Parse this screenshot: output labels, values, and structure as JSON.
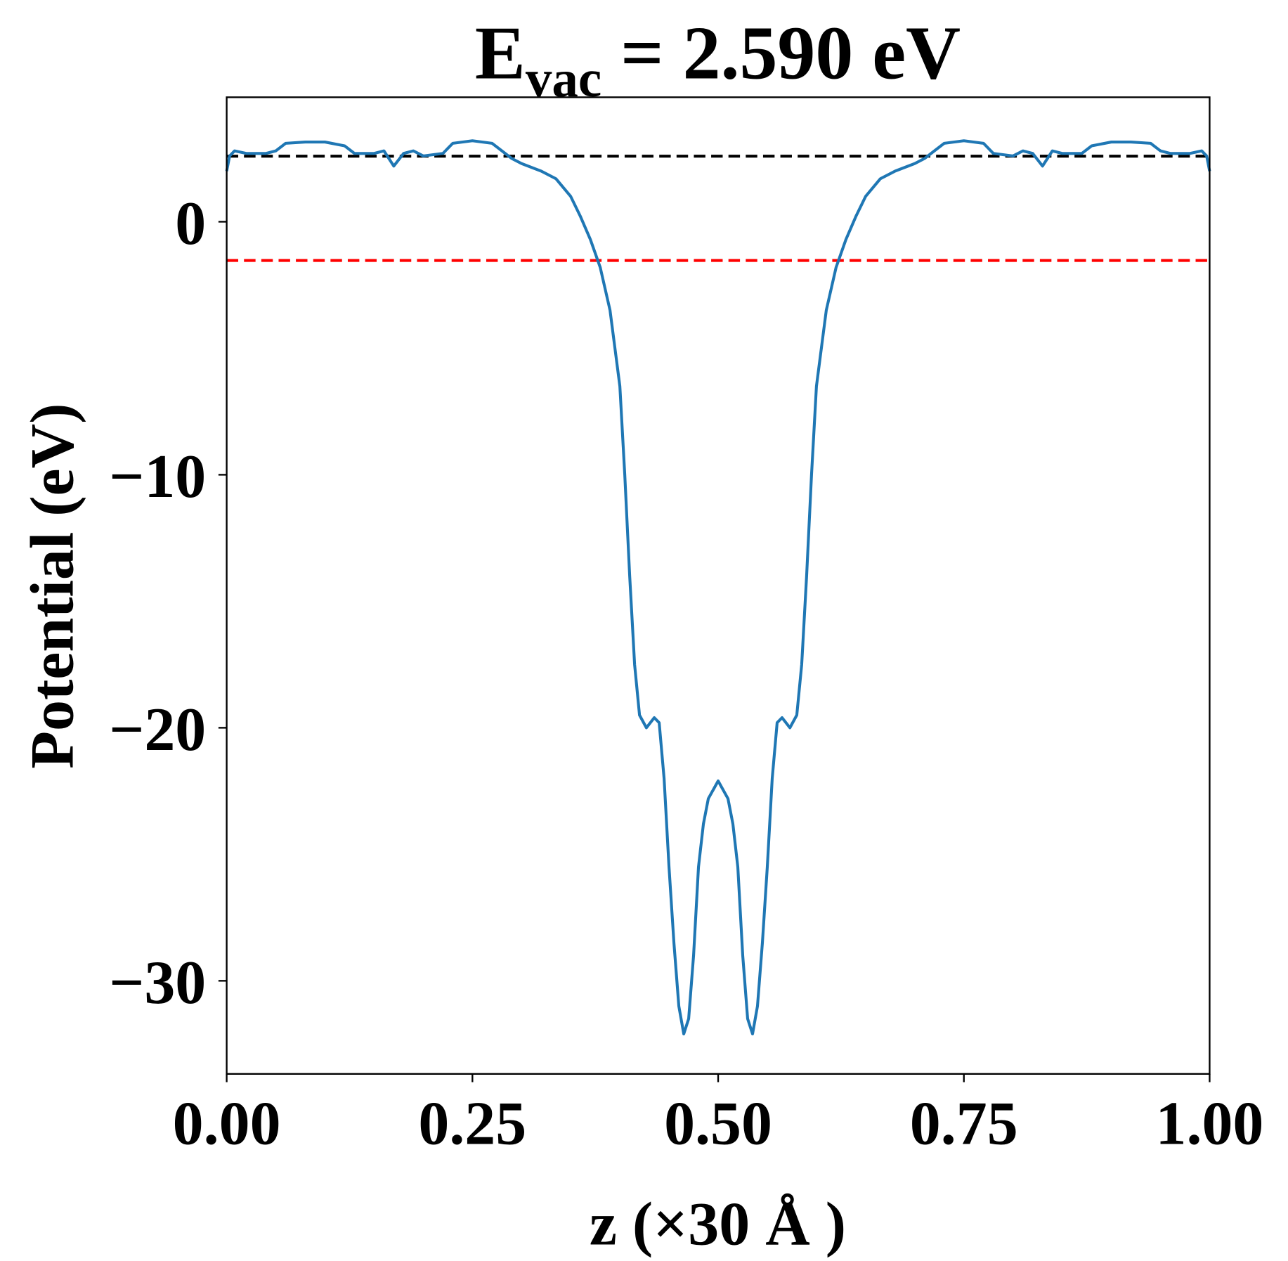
{
  "chart_data": {
    "type": "line",
    "title": {
      "main": "E",
      "subscript": "vac",
      "rest": " = 2.590 eV"
    },
    "xlabel": "z (×30 Å )",
    "ylabel": "Potential (eV)",
    "color": "#1f77b4",
    "x": [
      0,
      0.003,
      0.008,
      0.02,
      0.04,
      0.05,
      0.06,
      0.08,
      0.1,
      0.12,
      0.13,
      0.15,
      0.16,
      0.165,
      0.17,
      0.18,
      0.19,
      0.2,
      0.22,
      0.23,
      0.25,
      0.27,
      0.28,
      0.29,
      0.3,
      0.32,
      0.335,
      0.35,
      0.36,
      0.37,
      0.38,
      0.39,
      0.4,
      0.405,
      0.41,
      0.415,
      0.42,
      0.427,
      0.435,
      0.44,
      0.445,
      0.45,
      0.455,
      0.46,
      0.465,
      0.47,
      0.475,
      0.48,
      0.485,
      0.49,
      0.5,
      0.51,
      0.515,
      0.52,
      0.525,
      0.53,
      0.535,
      0.54,
      0.545,
      0.55,
      0.555,
      0.56,
      0.565,
      0.573,
      0.58,
      0.585,
      0.59,
      0.595,
      0.6,
      0.61,
      0.62,
      0.63,
      0.64,
      0.65,
      0.665,
      0.68,
      0.7,
      0.71,
      0.72,
      0.73,
      0.75,
      0.77,
      0.78,
      0.8,
      0.81,
      0.82,
      0.83,
      0.835,
      0.84,
      0.85,
      0.87,
      0.88,
      0.9,
      0.92,
      0.94,
      0.95,
      0.96,
      0.98,
      0.992,
      0.997,
      1.0
    ],
    "values": [
      2.0,
      2.6,
      2.8,
      2.7,
      2.7,
      2.8,
      3.1,
      3.15,
      3.15,
      3.0,
      2.7,
      2.7,
      2.8,
      2.5,
      2.2,
      2.7,
      2.8,
      2.6,
      2.7,
      3.1,
      3.2,
      3.1,
      2.8,
      2.5,
      2.3,
      2.0,
      1.7,
      1.0,
      0.2,
      -0.7,
      -1.8,
      -3.5,
      -6.5,
      -10,
      -14,
      -17.5,
      -19.5,
      -20.0,
      -19.6,
      -19.8,
      -22,
      -25.5,
      -28.5,
      -31,
      -32.1,
      -31.5,
      -29,
      -25.5,
      -23.8,
      -22.8,
      -22.1,
      -22.8,
      -23.8,
      -25.5,
      -29,
      -31.5,
      -32.1,
      -31,
      -28.5,
      -25.5,
      -22,
      -19.8,
      -19.6,
      -20.0,
      -19.5,
      -17.5,
      -14,
      -10,
      -6.5,
      -3.5,
      -1.8,
      -0.7,
      0.2,
      1.0,
      1.7,
      2.0,
      2.3,
      2.5,
      2.8,
      3.1,
      3.2,
      3.1,
      2.7,
      2.6,
      2.8,
      2.7,
      2.2,
      2.5,
      2.8,
      2.7,
      2.7,
      3.0,
      3.15,
      3.15,
      3.1,
      2.8,
      2.7,
      2.7,
      2.8,
      2.6,
      2.0
    ],
    "hlines": [
      {
        "y": 2.59,
        "color": "#000000"
      },
      {
        "y": -1.53,
        "color": "#ff0000"
      }
    ],
    "xlim": [
      0,
      1
    ],
    "ylim": [
      -33.68,
      4.92
    ],
    "xticks": [
      {
        "value": 0,
        "label": "0.00"
      },
      {
        "value": 0.25,
        "label": "0.25"
      },
      {
        "value": 0.5,
        "label": "0.50"
      },
      {
        "value": 0.75,
        "label": "0.75"
      },
      {
        "value": 1,
        "label": "1.00"
      }
    ],
    "yticks": [
      {
        "value": -30,
        "label": "−30"
      },
      {
        "value": -20,
        "label": "−20"
      },
      {
        "value": -10,
        "label": "−10"
      },
      0
    ]
  }
}
